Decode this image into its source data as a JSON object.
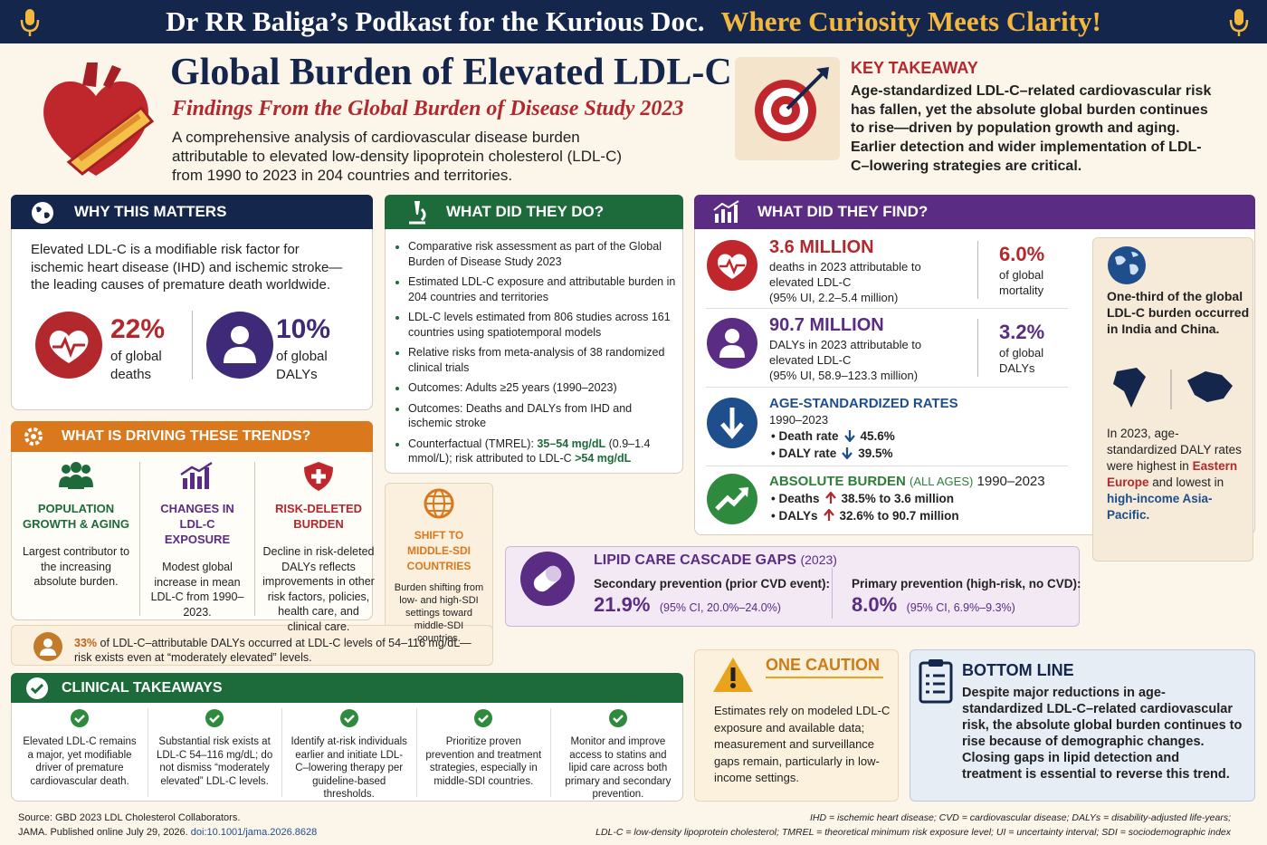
{
  "banner": {
    "left": "Dr RR Baliga’s Podkast for the Kurious Doc.",
    "right": "Where Curiosity Meets Clarity!"
  },
  "header": {
    "title": "Global Burden of Elevated LDL-C",
    "subtitle": "Findings From the Global Burden of Disease Study 2023",
    "description": "A comprehensive analysis of cardiovascular disease burden attributable to elevated low-density lipoprotein cholesterol (LDL-C) from 1990 to 2023 in 204 countries and territories."
  },
  "key_takeaway": {
    "title": "KEY TAKEAWAY",
    "text": "Age-standardized LDL-C–related cardiovascular risk has fallen, yet the absolute global burden continues to rise—driven by population growth and aging. Earlier detection and wider implementation of LDL-C–lowering strategies are critical."
  },
  "why_this_matters": {
    "title": "WHY THIS MATTERS",
    "text": "Elevated LDL-C is a modifiable risk factor for ischemic heart disease (IHD) and ischemic stroke—the leading causes of premature death worldwide.",
    "stats": [
      {
        "value": "22%",
        "label": "of global deaths"
      },
      {
        "value": "10%",
        "label": "of global DALYs"
      }
    ]
  },
  "what_did_they_do": {
    "title": "WHAT DID THEY DO?",
    "items": [
      "Comparative risk assessment as part of the Global Burden of Disease Study 2023",
      "Estimated LDL-C exposure and attributable burden in 204 countries and territories",
      "LDL-C levels estimated from 806 studies across 161 countries using spatiotemporal models",
      "Relative risks from meta-analysis of 38 randomized clinical trials",
      "Outcomes: Adults ≥25 years (1990–2023)",
      "Outcomes: Deaths and DALYs from IHD and ischemic stroke"
    ],
    "counterfactual": {
      "prefix": "Counterfactual (TMREL):",
      "range": "35–54 mg/dL",
      "mmol": "(0.9–1.4 mmol/L);",
      "suffix": "risk attributed to LDL-C",
      "threshold": ">54 mg/dL"
    }
  },
  "driving_trends": {
    "title": "WHAT IS DRIVING THESE TRENDS?",
    "columns": [
      {
        "title": "POPULATION GROWTH & AGING",
        "text": "Largest contributor to the increasing absolute burden."
      },
      {
        "title": "CHANGES IN LDL-C EXPOSURE",
        "text": "Modest global increase in mean LDL-C from 1990–2023."
      },
      {
        "title": "RISK-DELETED BURDEN",
        "text": "Decline in risk-deleted DALYs reflects improvements in other risk factors, policies, health care, and clinical care."
      },
      {
        "title": "SHIFT TO MIDDLE-SDI COUNTRIES",
        "text": "Burden shifting from low- and high-SDI settings toward middle-SDI countries."
      }
    ],
    "note": {
      "highlight": "33%",
      "text": "of LDL-C–attributable DALYs occurred at LDL-C levels of 54–116 mg/dL—risk exists even at “moderately elevated” levels."
    }
  },
  "what_did_they_find": {
    "title": "WHAT DID THEY FIND?",
    "deaths": {
      "value": "3.6 MILLION",
      "text": "deaths in 2023 attributable to elevated LDL-C",
      "ui": "(95% UI, 2.2–5.4 million)",
      "share": "6.0%",
      "share_label": "of global mortality"
    },
    "dalys": {
      "value": "90.7 MILLION",
      "text": "DALYs in 2023 attributable to elevated LDL-C",
      "ui": "(95% UI, 58.9–123.3 million)",
      "share": "3.2%",
      "share_label": "of global DALYs"
    },
    "age_standardized": {
      "title": "AGE-STANDARDIZED RATES",
      "period": "1990–2023",
      "rows": [
        {
          "label": "Death rate",
          "value": "45.6%"
        },
        {
          "label": "DALY rate",
          "value": "39.5%"
        }
      ]
    },
    "absolute": {
      "title": "ABSOLUTE BURDEN",
      "qualifier": "(ALL AGES)",
      "period": "1990–2023",
      "rows": [
        {
          "label": "Deaths",
          "value": "38.5% to 3.6 million"
        },
        {
          "label": "DALYs",
          "value": "32.6% to 90.7 million"
        }
      ]
    },
    "regional": {
      "burden": "One-third of the global LDL-C burden occurred in India and China.",
      "rates_intro": "In 2023, age-standardized DALY rates were highest in",
      "highest": "Eastern Europe",
      "connector": "and lowest in",
      "lowest": "high-income Asia-Pacific."
    }
  },
  "lipid_care": {
    "title": "LIPID CARE CASCADE GAPS",
    "year": "(2023)",
    "groups": [
      {
        "label": "Secondary prevention (prior CVD event):",
        "value": "21.9%",
        "ci": "(95% CI, 20.0%–24.0%)"
      },
      {
        "label": "Primary prevention (high-risk, no CVD):",
        "value": "8.0%",
        "ci": "(95% CI, 6.9%–9.3%)"
      }
    ]
  },
  "clinical_takeaways": {
    "title": "CLINICAL TAKEAWAYS",
    "items": [
      "Elevated LDL-C remains a major, yet modifiable driver of premature cardiovascular death.",
      "Substantial risk exists at LDL-C 54–116 mg/dL; do not dismiss “moderately elevated” LDL-C levels.",
      "Identify at-risk individuals earlier and initiate LDL-C–lowering therapy per guideline-based thresholds.",
      "Prioritize proven prevention and treatment strategies, especially in middle-SDI countries.",
      "Monitor and improve access to statins and lipid care across both primary and secondary prevention."
    ]
  },
  "one_caution": {
    "title": "ONE CAUTION",
    "text": "Estimates rely on modeled LDL-C exposure and available data; measurement and surveillance gaps remain, particularly in low-income settings."
  },
  "bottom_line": {
    "title": "BOTTOM LINE",
    "text": "Despite major reductions in age-standardized LDL-C–related cardiovascular risk, the absolute global burden continues to rise because of demographic changes. Closing gaps in lipid detection and treatment is essential to reverse this trend."
  },
  "footer": {
    "source": "Source: GBD 2023 LDL Cholesterol Collaborators.",
    "citation": "JAMA. Published online July 29, 2026.",
    "doi": "doi:10.1001/jama.2026.8628",
    "abbreviations_1": "IHD = ischemic heart disease;  CVD = cardiovascular disease;  DALYs = disability-adjusted life-years;",
    "abbreviations_2": "LDL-C = low-density lipoprotein cholesterol;  TMREL = theoretical minimum risk exposure level;  UI = uncertainty interval;  SDI = sociodemographic index"
  }
}
